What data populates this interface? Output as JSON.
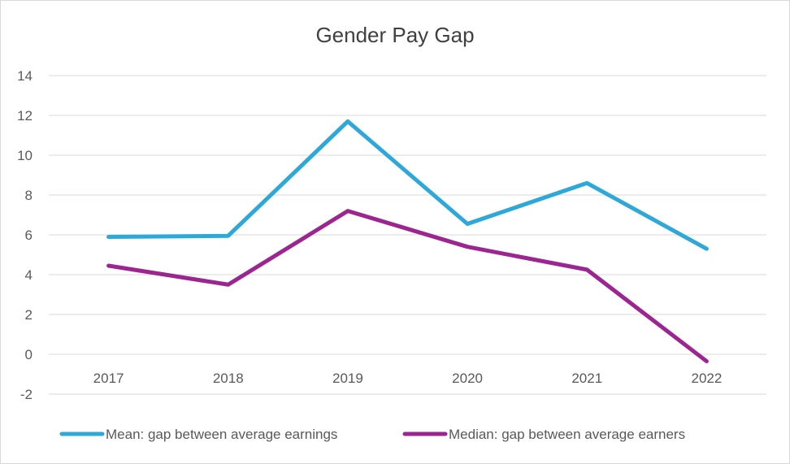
{
  "chart_data": {
    "type": "line",
    "title": "Gender Pay Gap",
    "xlabel": "",
    "ylabel": "",
    "categories": [
      "2017",
      "2018",
      "2019",
      "2020",
      "2021",
      "2022"
    ],
    "ylim": [
      -2,
      14
    ],
    "yticks": [
      -2,
      0,
      2,
      4,
      6,
      8,
      10,
      12,
      14
    ],
    "grid": true,
    "legend": "bottom",
    "series": [
      {
        "name": "Mean: gap between average earnings",
        "color": "#2ea8d8",
        "values": [
          5.9,
          5.95,
          11.7,
          6.55,
          8.6,
          5.3
        ]
      },
      {
        "name": "Median: gap between average earners",
        "color": "#9c2592",
        "values": [
          4.45,
          3.5,
          7.2,
          5.4,
          4.25,
          -0.35
        ]
      }
    ]
  }
}
